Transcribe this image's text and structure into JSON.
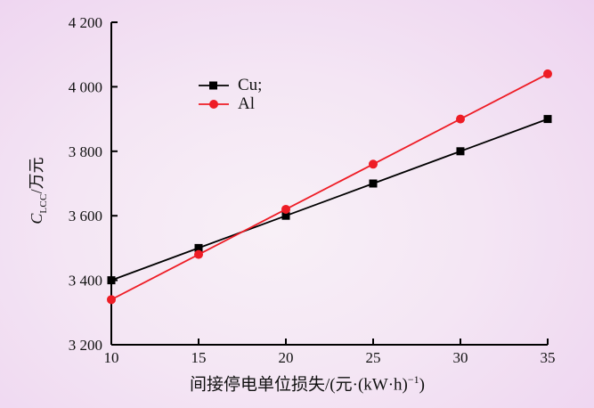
{
  "page": {
    "background_center": "#f8f0f7",
    "background_edge": "#e6bfec",
    "axis_color": "#000000",
    "text_color": "#111111"
  },
  "labels": {
    "y_var": "C",
    "y_sub": "LCC",
    "y_unit": "/万元",
    "x_prefix": "间接停电单位损失/(元·(kW·h)",
    "x_sup": "−1",
    "x_suffix": ")"
  },
  "chart_data": {
    "type": "line",
    "title": "",
    "xlabel": "间接停电单位损失/(元·(kW·h)⁻¹)",
    "ylabel": "C_LCC/万元",
    "xlim": [
      10,
      35
    ],
    "ylim": [
      3200,
      4200
    ],
    "grid": false,
    "legend_position": "upper-center-left-inside",
    "x": [
      10,
      15,
      20,
      25,
      30,
      35
    ],
    "x_ticks": [
      {
        "value": 10,
        "label": "10"
      },
      {
        "value": 15,
        "label": "15"
      },
      {
        "value": 20,
        "label": "20"
      },
      {
        "value": 25,
        "label": "25"
      },
      {
        "value": 30,
        "label": "30"
      },
      {
        "value": 35,
        "label": "35"
      }
    ],
    "y_ticks": [
      {
        "value": 3200,
        "label": "3 200"
      },
      {
        "value": 3400,
        "label": "3 400"
      },
      {
        "value": 3600,
        "label": "3 600"
      },
      {
        "value": 3800,
        "label": "3 800"
      },
      {
        "value": 4000,
        "label": "4 000"
      },
      {
        "value": 4200,
        "label": "4 200"
      }
    ],
    "series": [
      {
        "name": "Cu;",
        "color": "#000000",
        "marker": "square",
        "values": [
          3400,
          3500,
          3600,
          3700,
          3800,
          3900
        ]
      },
      {
        "name": "Al",
        "color": "#ee1c25",
        "marker": "circle",
        "values": [
          3340,
          3480,
          3620,
          3760,
          3900,
          4040
        ]
      }
    ]
  }
}
